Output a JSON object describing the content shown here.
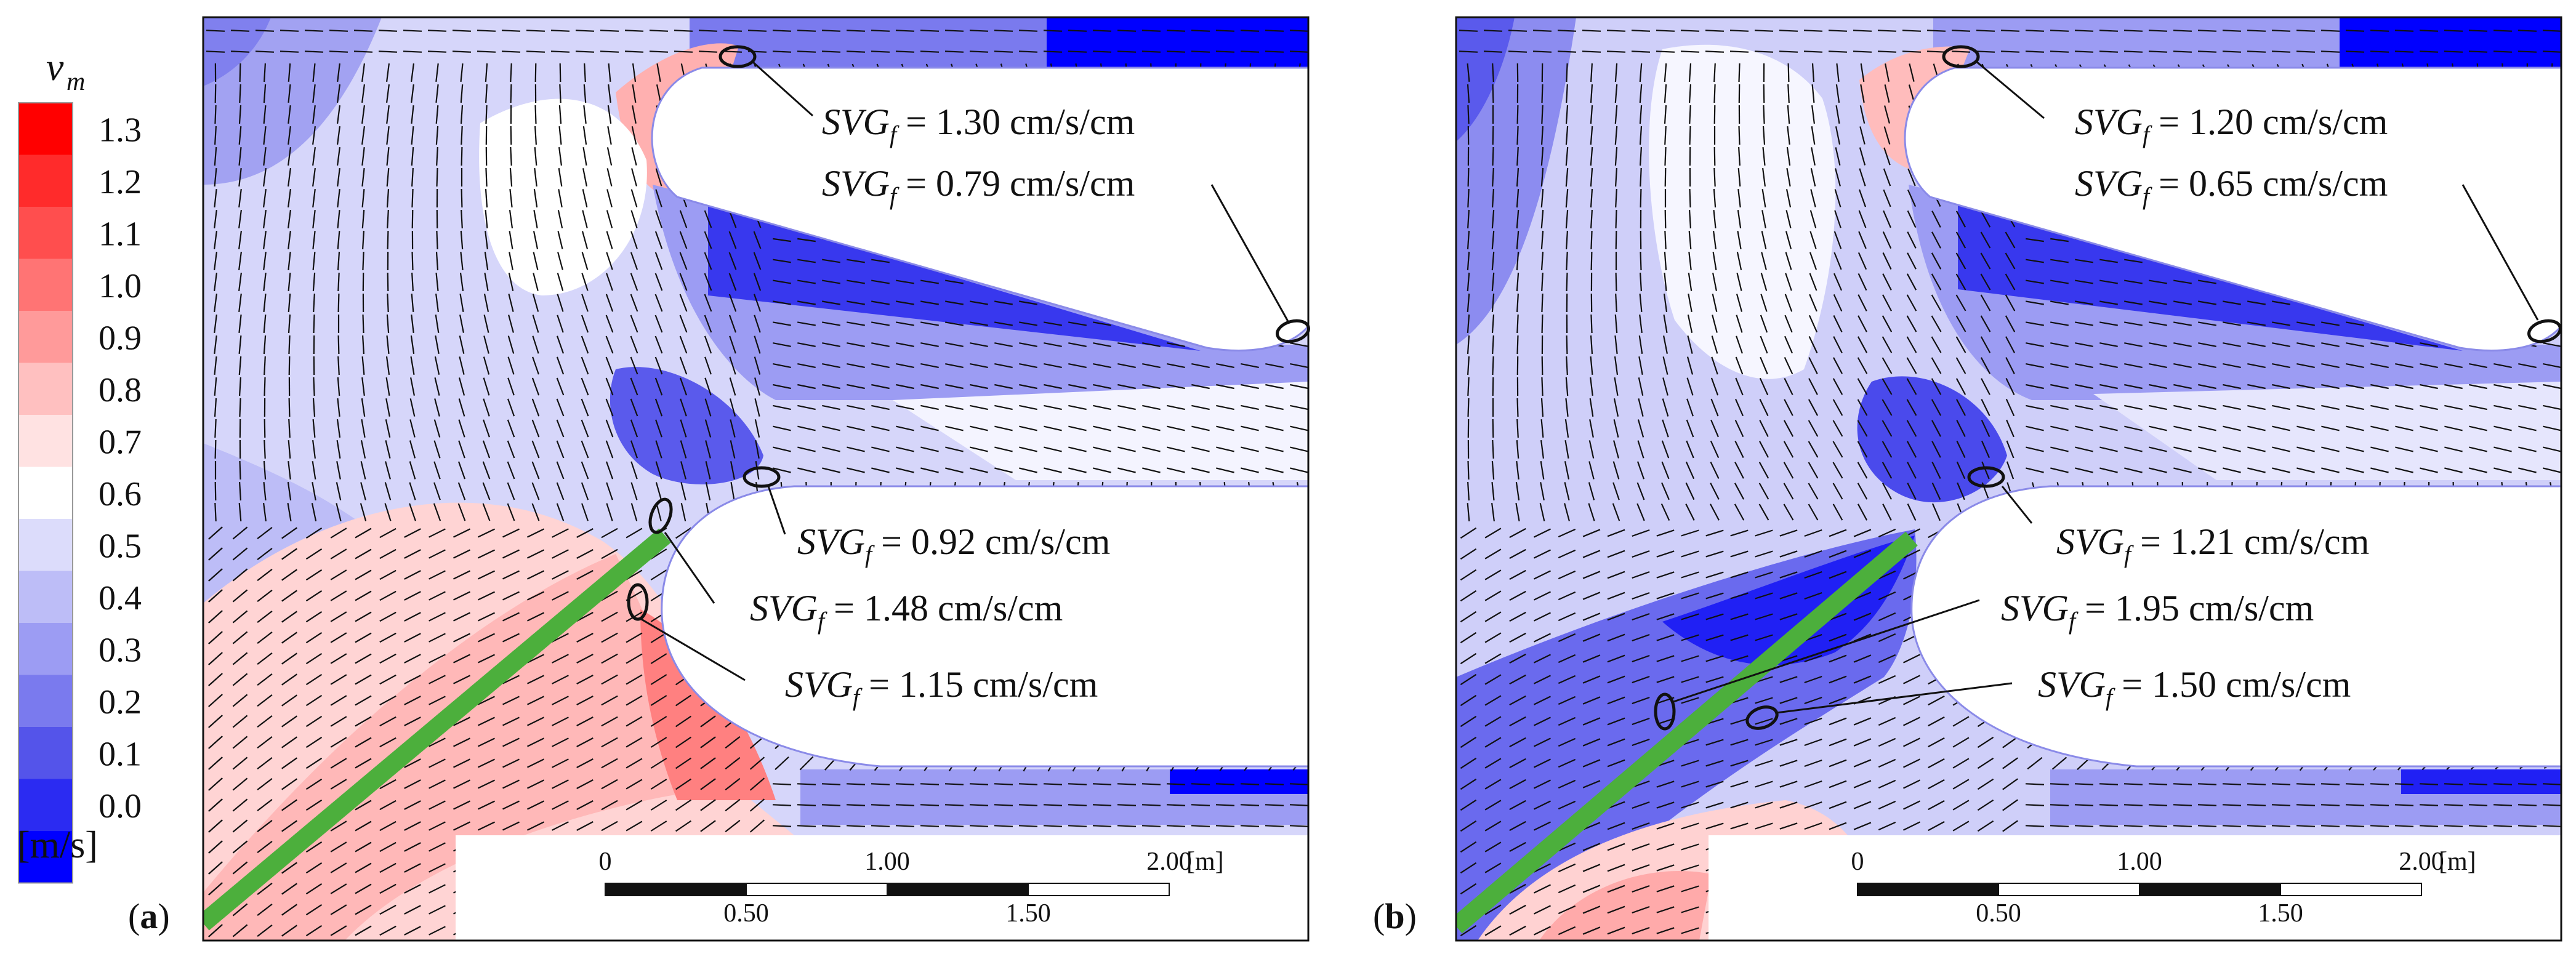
{
  "legend": {
    "symbol": "v",
    "subscript": "m",
    "unit": "[m/s]",
    "ticks": [
      "1.3",
      "1.2",
      "1.1",
      "1.0",
      "0.9",
      "0.8",
      "0.7",
      "0.6",
      "0.5",
      "0.4",
      "0.3",
      "0.2",
      "0.1",
      "0.0"
    ],
    "colors": [
      "#ff0000",
      "#ff2b2b",
      "#ff4e4e",
      "#ff7474",
      "#ff9a9a",
      "#ffc0c0",
      "#ffe2e2",
      "#ffffff",
      "#dcdcfb",
      "#bdbdf7",
      "#9c9cf3",
      "#7a7aee",
      "#5454ea",
      "#2b2bf2",
      "#0000ff"
    ]
  },
  "panels": [
    {
      "label": "a",
      "annotations": [
        {
          "prefix": "SVG",
          "sub": "f",
          "value": "= 1.30 cm/s/cm"
        },
        {
          "prefix": "SVG",
          "sub": "f",
          "value": "= 0.79 cm/s/cm"
        },
        {
          "prefix": "SVG",
          "sub": "f",
          "value": "= 0.92 cm/s/cm"
        },
        {
          "prefix": "SVG",
          "sub": "f",
          "value": "= 1.48 cm/s/cm"
        },
        {
          "prefix": "SVG",
          "sub": "f",
          "value": "= 1.15 cm/s/cm"
        }
      ]
    },
    {
      "label": "b",
      "annotations": [
        {
          "prefix": "SVG",
          "sub": "f",
          "value": "= 1.20 cm/s/cm"
        },
        {
          "prefix": "SVG",
          "sub": "f",
          "value": "= 0.65 cm/s/cm"
        },
        {
          "prefix": "SVG",
          "sub": "f",
          "value": "= 1.21 cm/s/cm"
        },
        {
          "prefix": "SVG",
          "sub": "f",
          "value": "= 1.95 cm/s/cm"
        },
        {
          "prefix": "SVG",
          "sub": "f",
          "value": "= 1.50 cm/s/cm"
        }
      ]
    }
  ],
  "scalebar": {
    "top_labels": [
      "0",
      "1.00",
      "2.00"
    ],
    "bottom_labels": [
      "0.50",
      "1.50"
    ],
    "unit": "[m]"
  }
}
